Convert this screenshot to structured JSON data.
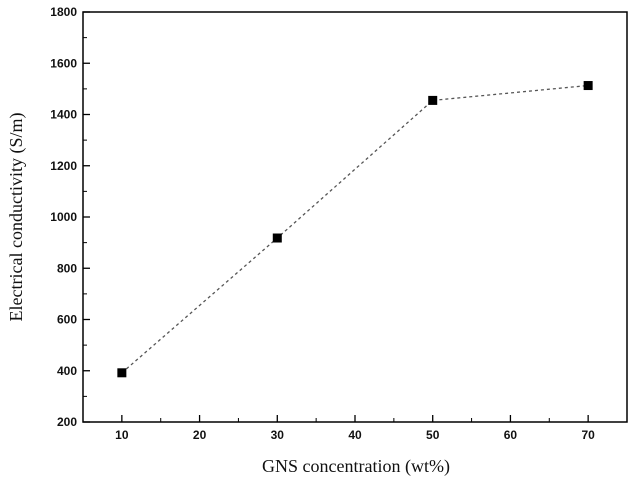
{
  "chart_data": {
    "type": "line",
    "title": "",
    "xlabel": "GNS concentration (wt%)",
    "ylabel": "Electrical conductivity (S/m)",
    "xlim": [
      5,
      75
    ],
    "ylim": [
      200,
      1800
    ],
    "x_ticks": [
      10,
      20,
      30,
      40,
      50,
      60,
      70
    ],
    "y_ticks": [
      200,
      400,
      600,
      800,
      1000,
      1200,
      1400,
      1600,
      1800
    ],
    "grid": false,
    "legend": "none",
    "marker": "square",
    "line_style": "dotted",
    "series_color": "#000000",
    "series": [
      {
        "x": [
          10,
          30,
          50,
          70
        ],
        "y": [
          392,
          918,
          1455,
          1513
        ]
      }
    ]
  }
}
